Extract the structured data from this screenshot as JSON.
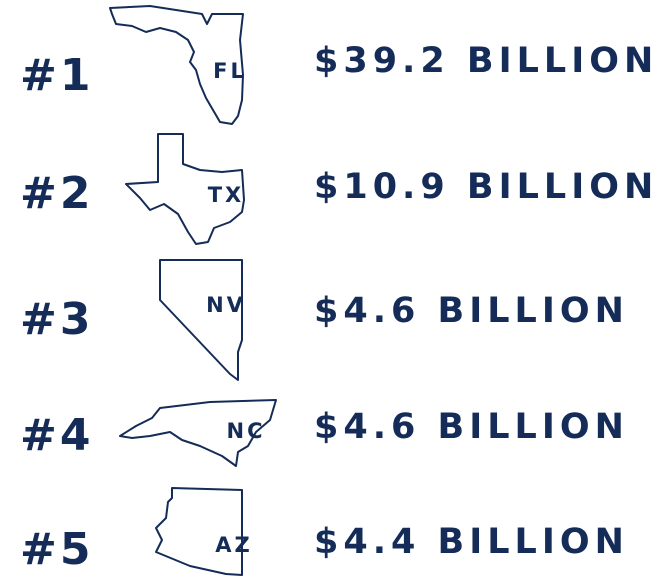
{
  "items": [
    {
      "rank": "#1",
      "state": "FL",
      "amount": "$39.2 BILLION"
    },
    {
      "rank": "#2",
      "state": "TX",
      "amount": "$10.9 BILLION"
    },
    {
      "rank": "#3",
      "state": "NV",
      "amount": "$4.6 BILLION"
    },
    {
      "rank": "#4",
      "state": "NC",
      "amount": "$4.6 BILLION"
    },
    {
      "rank": "#5",
      "state": "AZ",
      "amount": "$4.4 BILLION"
    }
  ]
}
